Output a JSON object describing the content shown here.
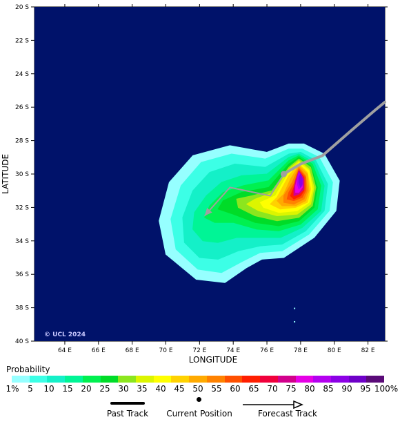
{
  "map": {
    "x_axis_title": "LONGITUDE",
    "y_axis_title": "LATITUDE",
    "copyright": "© UCL 2024",
    "lon_range": [
      62.2,
      83.0
    ],
    "lat_range": [
      -40.0,
      -20.0
    ],
    "lon_ticks": [
      "64 E",
      "66 E",
      "68 E",
      "70 E",
      "72 E",
      "74 E",
      "76 E",
      "78 E",
      "80 E",
      "82 E"
    ],
    "lat_ticks": [
      "20 S",
      "22 S",
      "24 S",
      "26 S",
      "28 S",
      "30 S",
      "32 S",
      "34 S",
      "36 S",
      "38 S",
      "40 S"
    ],
    "background_color": "#00126a",
    "track_color": "#a0a0a0",
    "past_track": [
      [
        83.0,
        -25.7
      ],
      [
        82.4,
        -26.2
      ],
      [
        81.0,
        -27.4
      ],
      [
        79.3,
        -28.9
      ],
      [
        78.0,
        -29.4
      ],
      [
        77.0,
        -30.0
      ]
    ],
    "current_position": [
      77.0,
      -30.0
    ],
    "forecast_track": [
      [
        77.0,
        -30.0
      ],
      [
        76.2,
        -31.3
      ],
      [
        73.8,
        -30.8
      ],
      [
        72.3,
        -32.5
      ]
    ]
  },
  "legend": {
    "title": "Probability",
    "labels": [
      "1%",
      "5",
      "10",
      "15",
      "20",
      "25",
      "30",
      "35",
      "40",
      "45",
      "50",
      "55",
      "60",
      "65",
      "70",
      "75",
      "80",
      "85",
      "90",
      "95",
      "100%"
    ],
    "colors": [
      "#96ffff",
      "#3cffe6",
      "#14f0c8",
      "#00f596",
      "#00f050",
      "#00dc28",
      "#8ce61e",
      "#dcf500",
      "#ffff00",
      "#ffd200",
      "#ffaa00",
      "#ff8200",
      "#ff5000",
      "#ff1e00",
      "#f0003c",
      "#d2008c",
      "#e600e6",
      "#b400f0",
      "#8c00e6",
      "#6e00c8",
      "#5a0a78"
    ],
    "past_track_label": "Past Track",
    "current_position_label": "Current Position",
    "forecast_track_label": "Forecast Track"
  }
}
